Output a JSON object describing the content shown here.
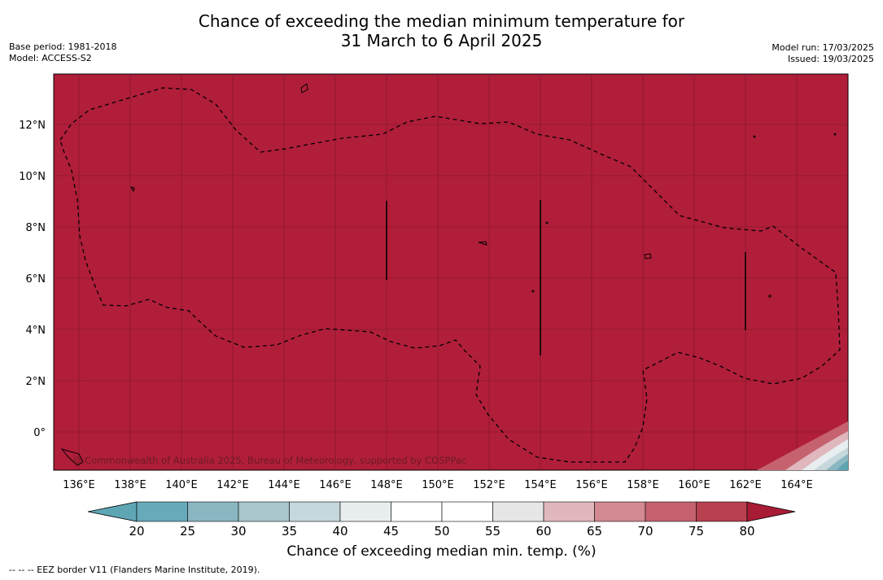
{
  "title": {
    "line1": "Chance of exceeding the median minimum temperature for",
    "line2": "31 March to 6 April 2025"
  },
  "meta_left": {
    "base_period": "Base period: 1981-2018",
    "model": "Model: ACCESS-S2"
  },
  "meta_right": {
    "model_run": "Model run: 17/03/2025",
    "issued": "Issued: 19/03/2025"
  },
  "map": {
    "lon_labels": [
      "136°E",
      "138°E",
      "140°E",
      "142°E",
      "144°E",
      "146°E",
      "148°E",
      "150°E",
      "152°E",
      "154°E",
      "156°E",
      "158°E",
      "160°E",
      "162°E",
      "164°E"
    ],
    "lat_labels": [
      "12°N",
      "10°N",
      "8°N",
      "6°N",
      "4°N",
      "2°N",
      "0°"
    ],
    "fill_color": "#b11e3a",
    "copyright": "© Commonwealth of Australia 2025, Bureau of Meteorology, supported by COSPPac"
  },
  "colorbar": {
    "ticks": [
      "20",
      "25",
      "30",
      "35",
      "40",
      "45",
      "50",
      "55",
      "60",
      "65",
      "70",
      "75",
      "80"
    ],
    "colors": [
      "#5ea6b4",
      "#67aab9",
      "#8ab6c2",
      "#a9c7cc",
      "#c6d8dc",
      "#e8eef0",
      "#ffffff",
      "#ffffff",
      "#e6e6e6",
      "#dfb7bd",
      "#d38a93",
      "#c6626f",
      "#b8404f",
      "#a81c36"
    ],
    "label": "Chance of exceeding median min. temp. (%)"
  },
  "footer": "--  --  -- EEZ border V11 (Flanders Marine Institute, 2019)."
}
